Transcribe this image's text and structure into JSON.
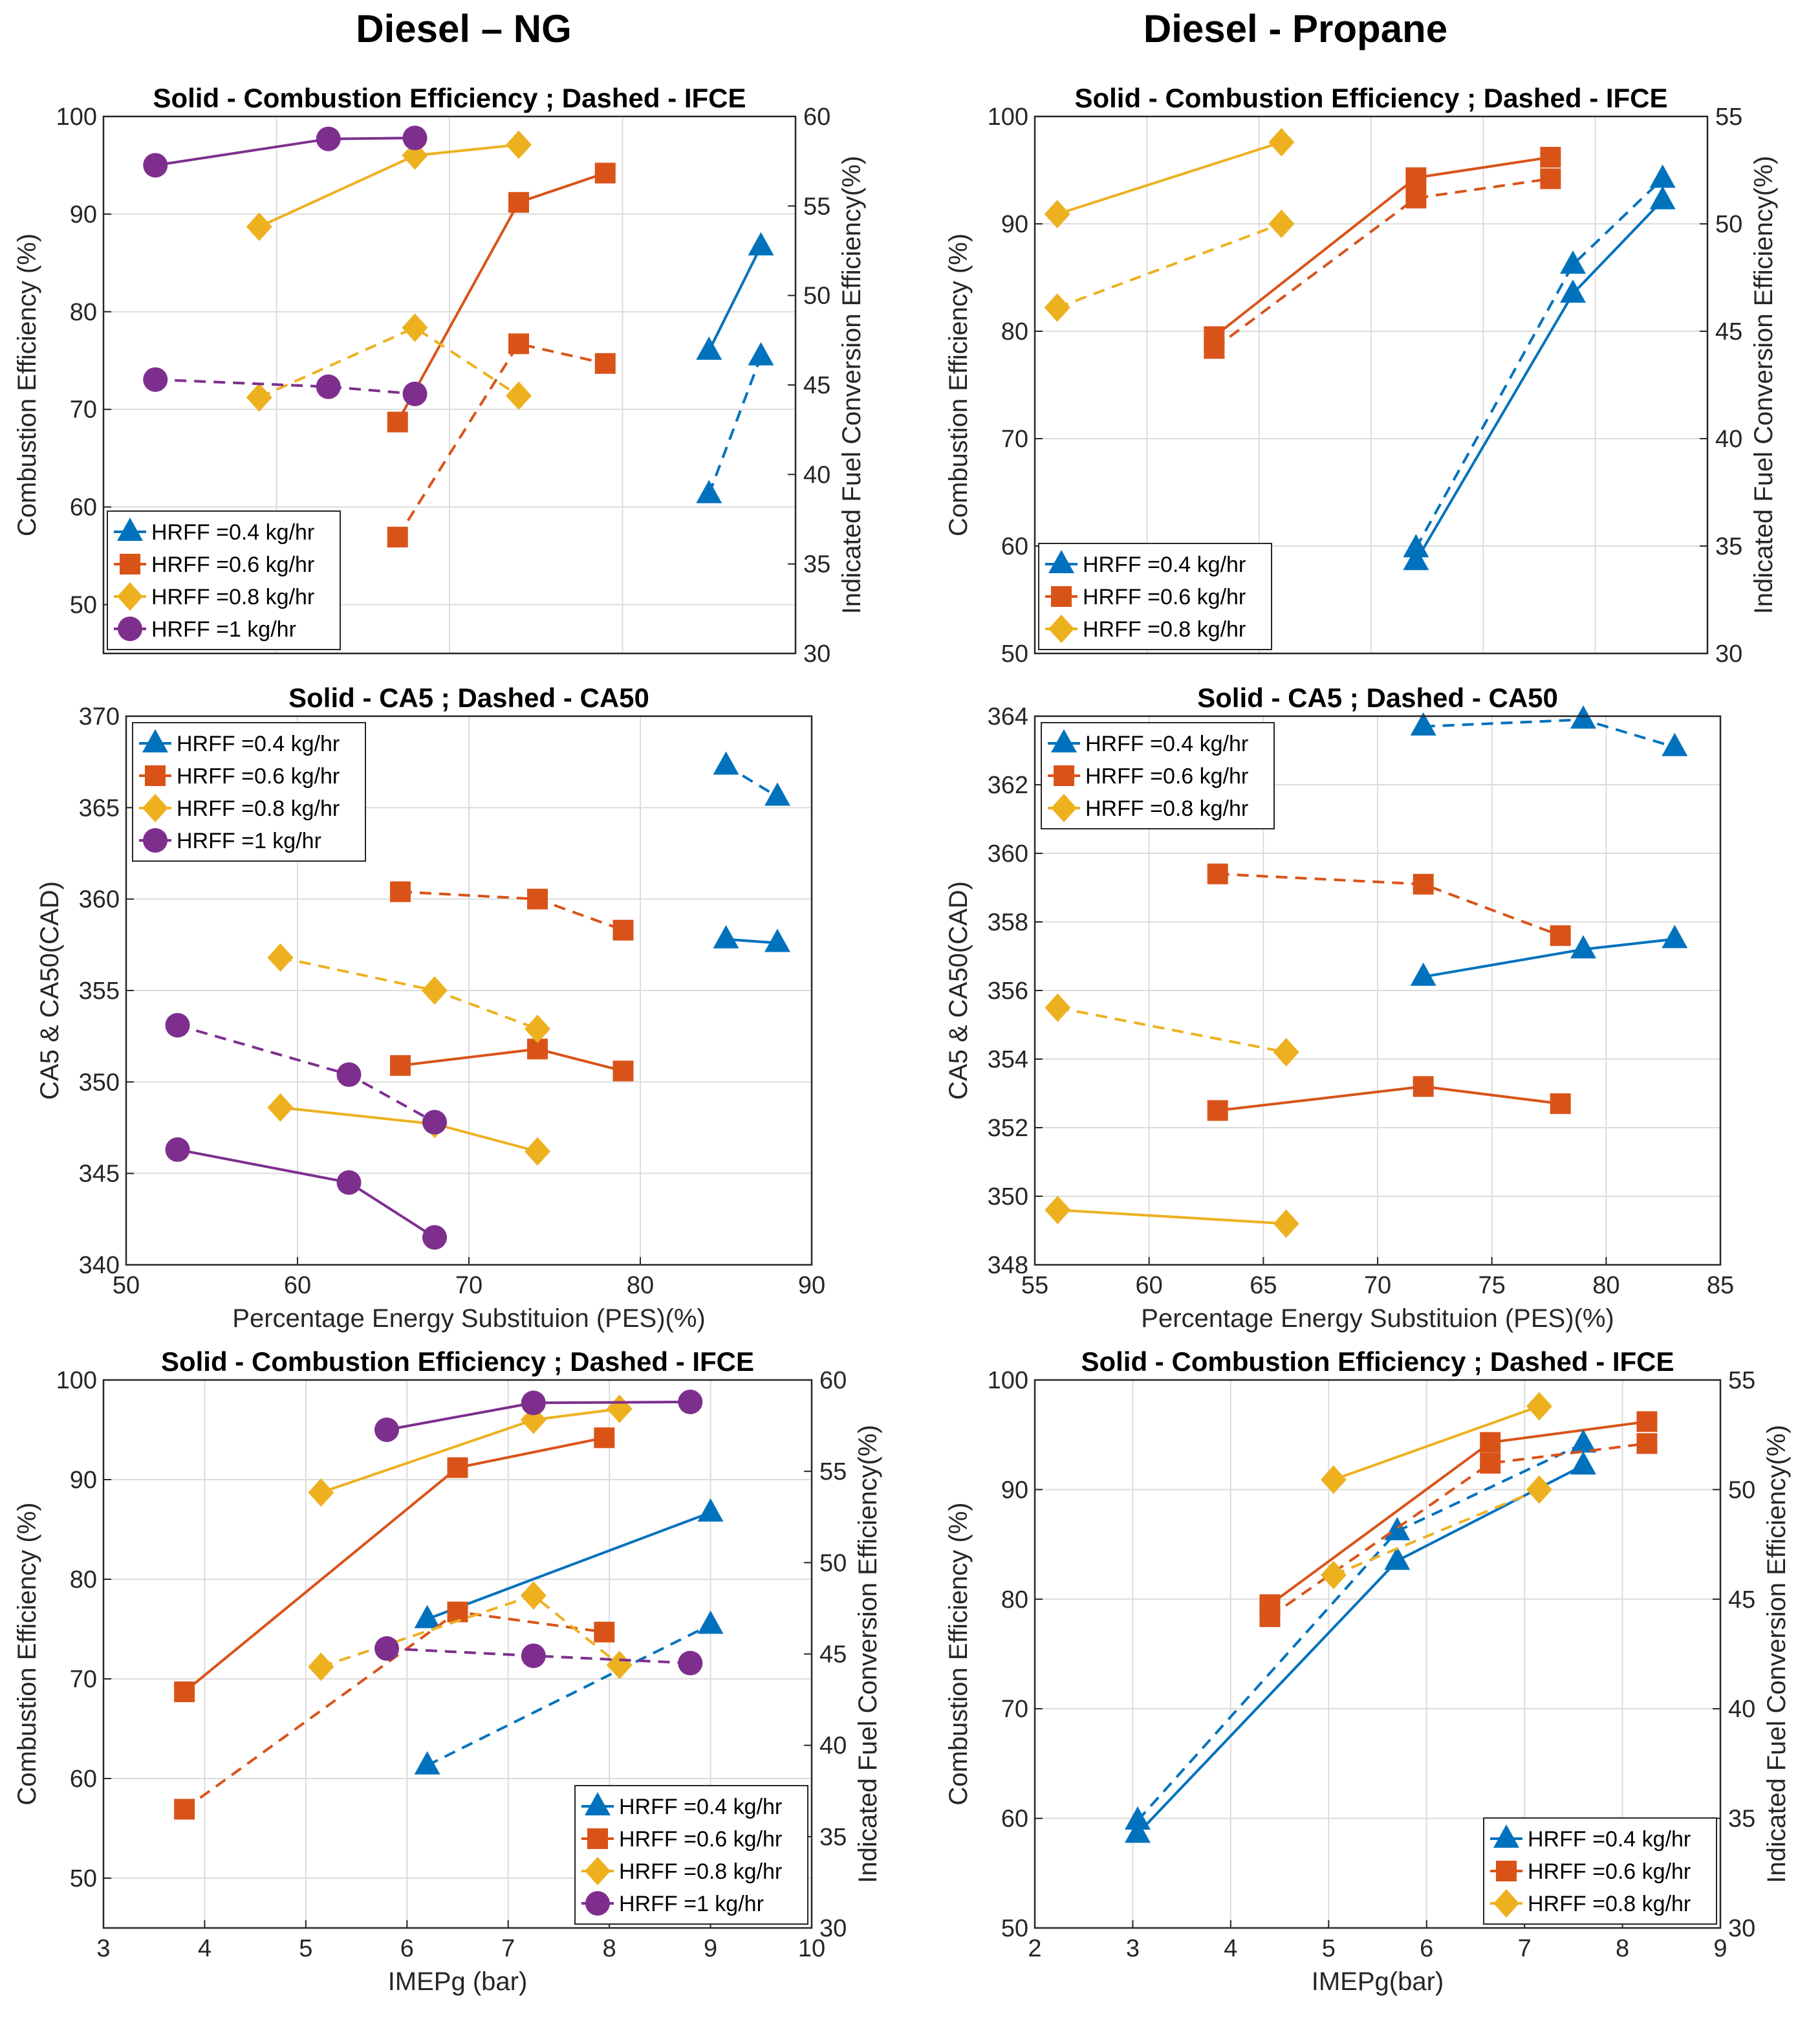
{
  "column_titles": [
    "Diesel – NG",
    "Diesel - Propane"
  ],
  "colors": {
    "HRFF =0.4 kg/hr": "#0072BD",
    "HRFF =0.6 kg/hr": "#D95319",
    "HRFF =0.8 kg/hr": "#EDB120",
    "HRFF =1 kg/hr": "#7E2F8E"
  },
  "markers": {
    "HRFF =0.4 kg/hr": "triangle",
    "HRFF =0.6 kg/hr": "square",
    "HRFF =0.8 kg/hr": "diamond",
    "HRFF =1 kg/hr": "circle"
  },
  "chart_data": [
    {
      "type": "line",
      "title": "Solid - Combustion Efficiency ; Dashed - IFCE",
      "xlim": [
        50,
        90
      ],
      "xticks": [],
      "xlabel": "",
      "ylabel": "Combustion Efficiency (%)",
      "ylim": [
        45,
        100
      ],
      "yticks": [
        50,
        60,
        70,
        80,
        90,
        100
      ],
      "y2label": "Indicated Fuel Conversion Efficiency(%)",
      "y2lim": [
        30,
        60
      ],
      "y2ticks": [
        30,
        35,
        40,
        45,
        50,
        55,
        60
      ],
      "legend": "bottom-left",
      "grid": true,
      "series": [
        {
          "name": "HRFF =0.4 kg/hr",
          "style": "solid",
          "axis": "left",
          "x": [
            85,
            88
          ],
          "y": [
            76,
            86.7
          ]
        },
        {
          "name": "HRFF =0.6 kg/hr",
          "style": "solid",
          "axis": "left",
          "x": [
            67,
            74,
            79
          ],
          "y": [
            68.7,
            91.2,
            94.2
          ]
        },
        {
          "name": "HRFF =0.8 kg/hr",
          "style": "solid",
          "axis": "left",
          "x": [
            59,
            68,
            74
          ],
          "y": [
            88.7,
            96,
            97.1
          ]
        },
        {
          "name": "HRFF =1 kg/hr",
          "style": "solid",
          "axis": "left",
          "x": [
            53,
            63,
            68
          ],
          "y": [
            95,
            97.7,
            97.8
          ]
        },
        {
          "name": "HRFF =0.4 kg/hr",
          "style": "dashed",
          "axis": "right",
          "x": [
            85,
            88
          ],
          "y": [
            38.9,
            46.6
          ]
        },
        {
          "name": "HRFF =0.6 kg/hr",
          "style": "dashed",
          "axis": "right",
          "x": [
            67,
            74,
            79
          ],
          "y": [
            36.5,
            47.3,
            46.2
          ]
        },
        {
          "name": "HRFF =0.8 kg/hr",
          "style": "dashed",
          "axis": "right",
          "x": [
            59,
            68,
            74
          ],
          "y": [
            44.3,
            48.2,
            44.4
          ]
        },
        {
          "name": "HRFF =1 kg/hr",
          "style": "dashed",
          "axis": "right",
          "x": [
            53,
            63,
            68
          ],
          "y": [
            45.3,
            44.9,
            44.5
          ]
        }
      ]
    },
    {
      "type": "line",
      "title": "Solid - Combustion Efficiency ; Dashed - IFCE",
      "xlim": [
        55,
        85
      ],
      "xticks": [],
      "xlabel": "",
      "ylabel": "Combustion Efficiency (%)",
      "ylim": [
        50,
        100
      ],
      "yticks": [
        50,
        60,
        70,
        80,
        90,
        100
      ],
      "y2label": "Indicated Fuel Conversion Efficiency(%)",
      "y2lim": [
        30,
        55
      ],
      "y2ticks": [
        30,
        35,
        40,
        45,
        50,
        55
      ],
      "legend": "bottom-left",
      "grid": true,
      "series": [
        {
          "name": "HRFF =0.4 kg/hr",
          "style": "solid",
          "axis": "left",
          "x": [
            72,
            79,
            83
          ],
          "y": [
            58.6,
            83.5,
            92.2
          ]
        },
        {
          "name": "HRFF =0.6 kg/hr",
          "style": "solid",
          "axis": "left",
          "x": [
            63,
            72,
            78
          ],
          "y": [
            79.5,
            94.3,
            96.2
          ]
        },
        {
          "name": "HRFF =0.8 kg/hr",
          "style": "solid",
          "axis": "left",
          "x": [
            56,
            66
          ],
          "y": [
            90.9,
            97.6
          ]
        },
        {
          "name": "HRFF =0.4 kg/hr",
          "style": "dashed",
          "axis": "right",
          "x": [
            72,
            79,
            83
          ],
          "y": [
            34.9,
            48.1,
            52.1
          ]
        },
        {
          "name": "HRFF =0.6 kg/hr",
          "style": "dashed",
          "axis": "right",
          "x": [
            63,
            72,
            78
          ],
          "y": [
            44.2,
            51.2,
            52.1
          ]
        },
        {
          "name": "HRFF =0.8 kg/hr",
          "style": "dashed",
          "axis": "right",
          "x": [
            56,
            66
          ],
          "y": [
            46.1,
            50
          ]
        }
      ]
    },
    {
      "type": "line",
      "title": "Solid - CA5 ; Dashed - CA50",
      "xlim": [
        50,
        90
      ],
      "xticks": [
        50,
        60,
        70,
        80,
        90
      ],
      "xlabel": "Percentage Energy Substituion (PES)(%)",
      "ylabel": "CA5 & CA50(CAD)",
      "ylim": [
        340,
        370
      ],
      "yticks": [
        340,
        345,
        350,
        355,
        360,
        365,
        370
      ],
      "legend": "top-left",
      "grid": true,
      "series": [
        {
          "name": "HRFF =0.4 kg/hr",
          "style": "solid",
          "x": [
            85,
            88
          ],
          "y": [
            357.8,
            357.6
          ]
        },
        {
          "name": "HRFF =0.6 kg/hr",
          "style": "solid",
          "x": [
            66,
            74,
            79
          ],
          "y": [
            350.9,
            351.8,
            350.6
          ]
        },
        {
          "name": "HRFF =0.8 kg/hr",
          "style": "solid",
          "x": [
            59,
            68,
            74
          ],
          "y": [
            348.6,
            347.7,
            346.2
          ]
        },
        {
          "name": "HRFF =1 kg/hr",
          "style": "solid",
          "x": [
            53,
            63,
            68
          ],
          "y": [
            346.3,
            344.5,
            341.5
          ]
        },
        {
          "name": "HRFF =0.4 kg/hr",
          "style": "dashed",
          "x": [
            85,
            88
          ],
          "y": [
            367.3,
            365.6
          ]
        },
        {
          "name": "HRFF =0.6 kg/hr",
          "style": "dashed",
          "x": [
            66,
            74,
            79
          ],
          "y": [
            360.4,
            360,
            358.3
          ]
        },
        {
          "name": "HRFF =0.8 kg/hr",
          "style": "dashed",
          "x": [
            59,
            68,
            74
          ],
          "y": [
            356.8,
            355,
            352.9
          ]
        },
        {
          "name": "HRFF =1 kg/hr",
          "style": "dashed",
          "x": [
            53,
            63,
            68
          ],
          "y": [
            353.1,
            350.4,
            347.8
          ]
        }
      ]
    },
    {
      "type": "line",
      "title": "Solid - CA5 ; Dashed - CA50",
      "xlim": [
        55,
        85
      ],
      "xticks": [
        55,
        60,
        65,
        70,
        75,
        80,
        85
      ],
      "xlabel": "Percentage Energy Substituion (PES)(%)",
      "ylabel": "CA5 & CA50(CAD)",
      "ylim": [
        348,
        364
      ],
      "yticks": [
        348,
        350,
        352,
        354,
        356,
        358,
        360,
        362,
        364
      ],
      "legend": "top-left",
      "grid": true,
      "series": [
        {
          "name": "HRFF =0.4 kg/hr",
          "style": "solid",
          "x": [
            72,
            79,
            83
          ],
          "y": [
            356.4,
            357.2,
            357.5
          ]
        },
        {
          "name": "HRFF =0.6 kg/hr",
          "style": "solid",
          "x": [
            63,
            72,
            78
          ],
          "y": [
            352.5,
            353.2,
            352.7
          ]
        },
        {
          "name": "HRFF =0.8 kg/hr",
          "style": "solid",
          "x": [
            56,
            66
          ],
          "y": [
            349.6,
            349.2
          ]
        },
        {
          "name": "HRFF =0.4 kg/hr",
          "style": "dashed",
          "x": [
            72,
            79,
            83
          ],
          "y": [
            363.7,
            363.9,
            363.1
          ]
        },
        {
          "name": "HRFF =0.6 kg/hr",
          "style": "dashed",
          "x": [
            63,
            72,
            78
          ],
          "y": [
            359.4,
            359.1,
            357.6
          ]
        },
        {
          "name": "HRFF =0.8 kg/hr",
          "style": "dashed",
          "x": [
            56,
            66
          ],
          "y": [
            355.5,
            354.2
          ]
        }
      ]
    },
    {
      "type": "line",
      "title": "Solid - Combustion Efficiency ; Dashed - IFCE",
      "xlim": [
        3,
        10
      ],
      "xticks": [
        3,
        4,
        5,
        6,
        7,
        8,
        9,
        10
      ],
      "xlabel": "IMEPg (bar)",
      "ylabel": "Combustion Efficiency (%)",
      "ylim": [
        45,
        100
      ],
      "yticks": [
        50,
        60,
        70,
        80,
        90,
        100
      ],
      "y2label": "Indicated Fuel Conversion Efficiency(%)",
      "y2lim": [
        30,
        60
      ],
      "y2ticks": [
        30,
        35,
        40,
        45,
        50,
        55,
        60
      ],
      "legend": "bottom-right",
      "grid": true,
      "series": [
        {
          "name": "HRFF =0.4 kg/hr",
          "style": "solid",
          "axis": "left",
          "x": [
            6.2,
            9.0
          ],
          "y": [
            76,
            86.7
          ]
        },
        {
          "name": "HRFF =0.6 kg/hr",
          "style": "solid",
          "axis": "left",
          "x": [
            3.8,
            6.5,
            7.95
          ],
          "y": [
            68.7,
            91.2,
            94.2
          ]
        },
        {
          "name": "HRFF =0.8 kg/hr",
          "style": "solid",
          "axis": "left",
          "x": [
            5.15,
            7.25,
            8.1
          ],
          "y": [
            88.7,
            96,
            97.1
          ]
        },
        {
          "name": "HRFF =1 kg/hr",
          "style": "solid",
          "axis": "left",
          "x": [
            5.8,
            7.25,
            8.8
          ],
          "y": [
            95,
            97.7,
            97.8
          ]
        },
        {
          "name": "HRFF =0.4 kg/hr",
          "style": "dashed",
          "axis": "right",
          "x": [
            6.2,
            9.0
          ],
          "y": [
            38.9,
            46.6
          ]
        },
        {
          "name": "HRFF =0.6 kg/hr",
          "style": "dashed",
          "axis": "right",
          "x": [
            3.8,
            6.5,
            7.95
          ],
          "y": [
            36.5,
            47.3,
            46.2
          ]
        },
        {
          "name": "HRFF =0.8 kg/hr",
          "style": "dashed",
          "axis": "right",
          "x": [
            5.15,
            7.25,
            8.1
          ],
          "y": [
            44.3,
            48.2,
            44.4
          ]
        },
        {
          "name": "HRFF =1 kg/hr",
          "style": "dashed",
          "axis": "right",
          "x": [
            5.8,
            7.25,
            8.8
          ],
          "y": [
            45.3,
            44.9,
            44.5
          ]
        }
      ]
    },
    {
      "type": "line",
      "title": "Solid - Combustion Efficiency ; Dashed - IFCE",
      "xlim": [
        2,
        9
      ],
      "xticks": [
        2,
        3,
        4,
        5,
        6,
        7,
        8,
        9
      ],
      "xlabel": "IMEPg(bar)",
      "ylabel": "Combustion Efficiency (%)",
      "ylim": [
        50,
        100
      ],
      "yticks": [
        50,
        60,
        70,
        80,
        90,
        100
      ],
      "y2label": "Indicated Fuel Conversion Efficiency(%)",
      "y2lim": [
        30,
        55
      ],
      "y2ticks": [
        30,
        35,
        40,
        45,
        50,
        55
      ],
      "legend": "bottom-right",
      "grid": true,
      "series": [
        {
          "name": "HRFF =0.4 kg/hr",
          "style": "solid",
          "axis": "left",
          "x": [
            3.05,
            5.7,
            7.6
          ],
          "y": [
            58.6,
            83.5,
            92.2
          ]
        },
        {
          "name": "HRFF =0.6 kg/hr",
          "style": "solid",
          "axis": "left",
          "x": [
            4.4,
            6.65,
            8.25
          ],
          "y": [
            79.5,
            94.3,
            96.2
          ]
        },
        {
          "name": "HRFF =0.8 kg/hr",
          "style": "solid",
          "axis": "left",
          "x": [
            5.05,
            7.15
          ],
          "y": [
            90.9,
            97.6
          ]
        },
        {
          "name": "HRFF =0.4 kg/hr",
          "style": "dashed",
          "axis": "right",
          "x": [
            3.05,
            5.7,
            7.6
          ],
          "y": [
            34.9,
            48.1,
            52.1
          ]
        },
        {
          "name": "HRFF =0.6 kg/hr",
          "style": "dashed",
          "axis": "right",
          "x": [
            4.4,
            6.65,
            8.25
          ],
          "y": [
            44.2,
            51.2,
            52.1
          ]
        },
        {
          "name": "HRFF =0.8 kg/hr",
          "style": "dashed",
          "axis": "right",
          "x": [
            5.05,
            7.15
          ],
          "y": [
            46.1,
            50
          ]
        }
      ]
    }
  ]
}
